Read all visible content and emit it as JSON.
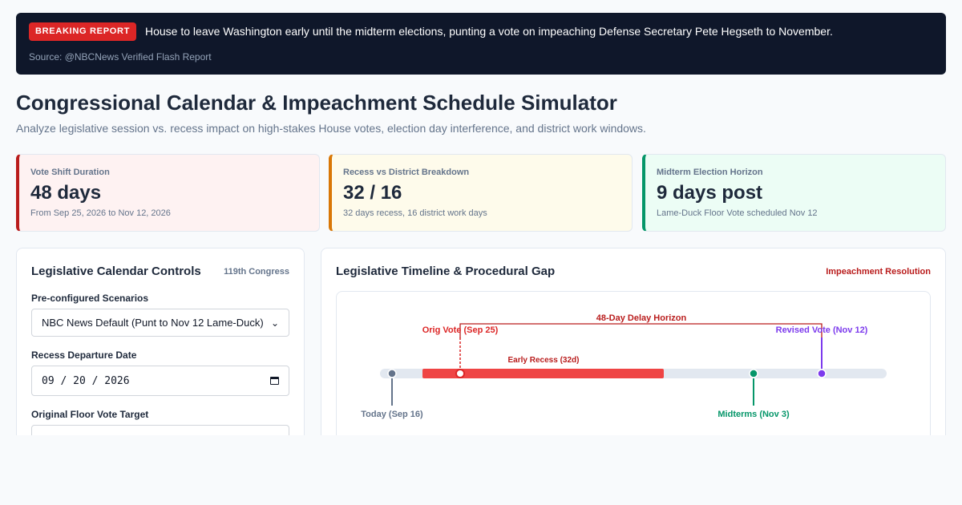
{
  "banner": {
    "badge": "BREAKING REPORT",
    "headline": "House to leave Washington early until the midterm elections, punting a vote on impeaching Defense Secretary Pete Hegseth to November.",
    "source": "Source: @NBCNews Verified Flash Report"
  },
  "page": {
    "title": "Congressional Calendar & Impeachment Schedule Simulator",
    "subtitle": "Analyze legislative session vs. recess impact on high-stakes House votes, election day interference, and district work windows."
  },
  "stats": [
    {
      "label": "Vote Shift Duration",
      "value": "48 days",
      "note": "From Sep 25, 2026 to Nov 12, 2026"
    },
    {
      "label": "Recess vs District Breakdown",
      "value": "32 / 16",
      "note": "32 days recess, 16 district work days"
    },
    {
      "label": "Midterm Election Horizon",
      "value": "9 days post",
      "note": "Lame-Duck Floor Vote scheduled Nov 12"
    }
  ],
  "controls": {
    "title": "Legislative Calendar Controls",
    "congress": "119th Congress",
    "scenario_label": "Pre-configured Scenarios",
    "scenario_value": "NBC News Default (Punt to Nov 12 Lame-Duck)",
    "recess_label": "Recess Departure Date",
    "recess_value": "09 / 20 / 2026",
    "orig_vote_label": "Original Floor Vote Target"
  },
  "timeline": {
    "title": "Legislative Timeline & Procedural Gap",
    "tag": "Impeachment Resolution",
    "delay_label": "48-Day Delay Horizon",
    "orig_vote": "Orig Vote (Sep 25)",
    "revised_vote": "Revised Vote (Nov 12)",
    "recess_label": "Early Recess (32d)",
    "today": "Today (Sep 16)",
    "midterms": "Midterms (Nov 3)"
  },
  "colors": {
    "red": "#dc2626",
    "recess_bar": "#ef4444",
    "green": "#059669",
    "purple": "#7c3aed",
    "slate": "#64748b",
    "track": "#e2e8f0"
  },
  "icons": [
    "chevron-down-icon",
    "calendar-icon"
  ]
}
